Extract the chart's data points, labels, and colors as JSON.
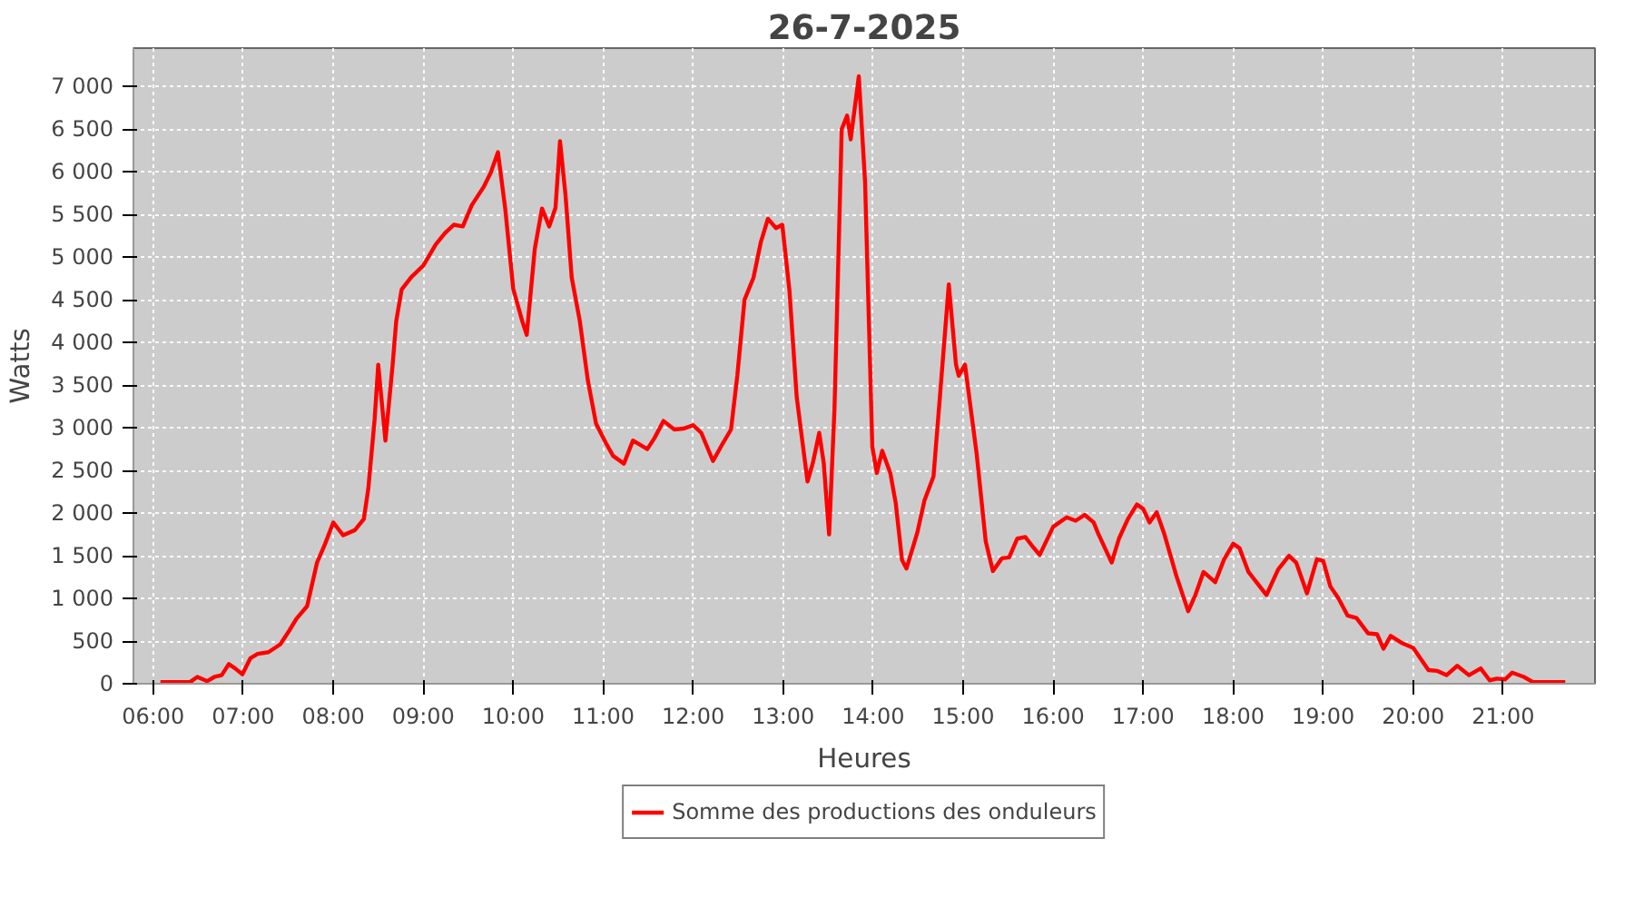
{
  "chart_data": {
    "type": "line",
    "title": "26-7-2025",
    "xlabel": "Heures",
    "ylabel": "Watts",
    "xlim": [
      5.78,
      22.02
    ],
    "ylim": [
      0,
      7450
    ],
    "xticks": [
      {
        "value": 6,
        "label": "06:00"
      },
      {
        "value": 7,
        "label": "07:00"
      },
      {
        "value": 8,
        "label": "08:00"
      },
      {
        "value": 9,
        "label": "09:00"
      },
      {
        "value": 10,
        "label": "10:00"
      },
      {
        "value": 11,
        "label": "11:00"
      },
      {
        "value": 12,
        "label": "12:00"
      },
      {
        "value": 13,
        "label": "13:00"
      },
      {
        "value": 14,
        "label": "14:00"
      },
      {
        "value": 15,
        "label": "15:00"
      },
      {
        "value": 16,
        "label": "16:00"
      },
      {
        "value": 17,
        "label": "17:00"
      },
      {
        "value": 18,
        "label": "18:00"
      },
      {
        "value": 19,
        "label": "19:00"
      },
      {
        "value": 20,
        "label": "20:00"
      },
      {
        "value": 21,
        "label": "21:00"
      }
    ],
    "yticks": [
      0,
      500,
      {
        "value": 1000,
        "label": "1 000"
      },
      {
        "value": 1500,
        "label": "1 500"
      },
      {
        "value": 2000,
        "label": "2 000"
      },
      {
        "value": 2500,
        "label": "2 500"
      },
      {
        "value": 3000,
        "label": "3 000"
      },
      {
        "value": 3500,
        "label": "3 500"
      },
      {
        "value": 4000,
        "label": "4 000"
      },
      {
        "value": 4500,
        "label": "4 500"
      },
      {
        "value": 5000,
        "label": "5 000"
      },
      {
        "value": 5500,
        "label": "5 500"
      },
      {
        "value": 6000,
        "label": "6 000"
      },
      {
        "value": 6500,
        "label": "6 500"
      },
      {
        "value": 7000,
        "label": "7 000"
      }
    ],
    "grid": true,
    "legend": "bottom",
    "line_style": "solid",
    "x": [
      6.08,
      6.41,
      6.49,
      6.6,
      6.68,
      6.76,
      6.84,
      6.91,
      6.99,
      7.08,
      7.16,
      7.28,
      7.41,
      7.51,
      7.59,
      7.71,
      7.82,
      7.91,
      8.0,
      8.11,
      8.24,
      8.34,
      8.39,
      8.46,
      8.5,
      8.58,
      8.66,
      8.7,
      8.76,
      8.87,
      9.0,
      9.14,
      9.24,
      9.34,
      9.44,
      9.54,
      9.67,
      9.75,
      9.83,
      9.91,
      10.0,
      10.1,
      10.15,
      10.24,
      10.32,
      10.4,
      10.47,
      10.52,
      10.58,
      10.65,
      10.74,
      10.83,
      10.92,
      11.03,
      11.11,
      11.23,
      11.33,
      11.49,
      11.57,
      11.67,
      11.79,
      11.89,
      12.0,
      12.09,
      12.22,
      12.33,
      12.42,
      12.49,
      12.57,
      12.67,
      12.75,
      12.83,
      12.92,
      12.99,
      13.07,
      13.15,
      13.27,
      13.33,
      13.4,
      13.45,
      13.51,
      13.57,
      13.65,
      13.71,
      13.75,
      13.84,
      13.91,
      13.99,
      14.04,
      14.1,
      14.19,
      14.25,
      14.32,
      14.37,
      14.49,
      14.57,
      14.67,
      14.75,
      14.84,
      14.92,
      14.95,
      15.02,
      15.15,
      15.25,
      15.33,
      15.43,
      15.51,
      15.6,
      15.69,
      15.77,
      15.85,
      16.0,
      16.15,
      16.25,
      16.35,
      16.45,
      16.5,
      16.65,
      16.73,
      16.83,
      16.93,
      17.0,
      17.07,
      17.15,
      17.23,
      17.37,
      17.5,
      17.58,
      17.67,
      17.8,
      17.9,
      18.0,
      18.07,
      18.17,
      18.37,
      18.5,
      18.62,
      18.7,
      18.82,
      18.93,
      19.0,
      19.08,
      19.17,
      19.27,
      19.37,
      19.5,
      19.6,
      19.67,
      19.75,
      19.87,
      20.0,
      20.17,
      20.27,
      20.37,
      20.49,
      20.62,
      20.75,
      20.85,
      20.93,
      21.02,
      21.1,
      21.23,
      21.33,
      21.69
    ],
    "series": [
      {
        "name": "Somme des productions des onduleurs",
        "color": "#ff0000",
        "values": [
          20,
          20,
          80,
          30,
          80,
          100,
          230,
          180,
          110,
          300,
          350,
          370,
          460,
          620,
          760,
          910,
          1420,
          1640,
          1890,
          1740,
          1800,
          1930,
          2290,
          3100,
          3740,
          2850,
          3740,
          4250,
          4620,
          4770,
          4900,
          5150,
          5280,
          5380,
          5360,
          5610,
          5820,
          5990,
          6230,
          5580,
          4630,
          4250,
          4090,
          5100,
          5570,
          5360,
          5580,
          6360,
          5740,
          4760,
          4250,
          3550,
          3050,
          2820,
          2670,
          2580,
          2850,
          2750,
          2880,
          3080,
          2980,
          2990,
          3030,
          2940,
          2610,
          2820,
          2980,
          3610,
          4500,
          4760,
          5170,
          5450,
          5340,
          5380,
          4600,
          3360,
          2370,
          2590,
          2940,
          2590,
          1750,
          3230,
          6500,
          6660,
          6380,
          7120,
          5870,
          2780,
          2470,
          2730,
          2470,
          2120,
          1450,
          1350,
          1770,
          2150,
          2430,
          3480,
          4680,
          3740,
          3610,
          3740,
          2690,
          1670,
          1320,
          1470,
          1480,
          1700,
          1720,
          1610,
          1510,
          1840,
          1950,
          1910,
          1980,
          1890,
          1760,
          1420,
          1700,
          1930,
          2100,
          2050,
          1890,
          2010,
          1770,
          1260,
          850,
          1040,
          1310,
          1190,
          1460,
          1640,
          1590,
          1310,
          1040,
          1340,
          1500,
          1420,
          1060,
          1460,
          1440,
          1140,
          1000,
          800,
          770,
          590,
          580,
          410,
          560,
          480,
          420,
          160,
          150,
          100,
          210,
          100,
          180,
          40,
          60,
          50,
          130,
          80,
          20,
          20
        ]
      }
    ]
  }
}
